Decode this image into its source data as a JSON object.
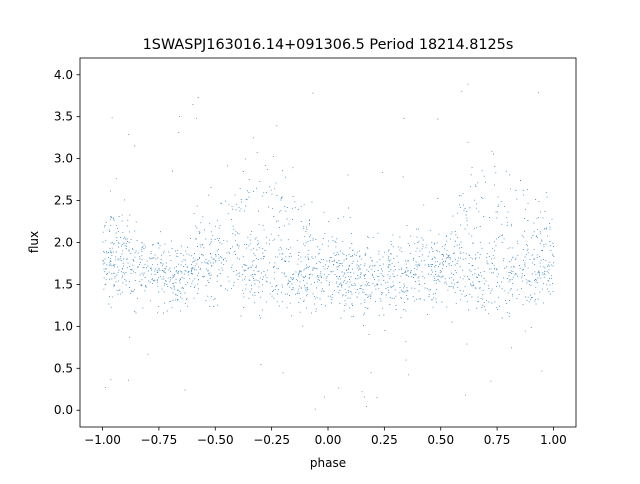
{
  "chart_data": {
    "type": "scatter",
    "title": "1SWASPJ163016.14+091306.5 Period 18214.8125s",
    "xlabel": "phase",
    "ylabel": "flux",
    "xlim": [
      -1.1,
      1.1
    ],
    "ylim": [
      -0.2,
      4.2
    ],
    "xticks": [
      -1.0,
      -0.75,
      -0.5,
      -0.25,
      0.0,
      0.25,
      0.5,
      0.75,
      1.0
    ],
    "xtick_labels": [
      "−1.00",
      "−0.75",
      "−0.50",
      "−0.25",
      "0.00",
      "0.25",
      "0.50",
      "0.75",
      "1.00"
    ],
    "yticks": [
      0.0,
      0.5,
      1.0,
      1.5,
      2.0,
      2.5,
      3.0,
      3.5,
      4.0
    ],
    "ytick_labels": [
      "0.0",
      "0.5",
      "1.0",
      "1.5",
      "2.0",
      "2.5",
      "3.0",
      "3.5",
      "4.0"
    ],
    "grid": false,
    "legend": "none",
    "series": [
      {
        "color": "#1f77b4",
        "x": [
          -1.0,
          -0.95,
          -0.9,
          -0.85,
          -0.8,
          -0.75,
          -0.7,
          -0.65,
          -0.6,
          -0.55,
          -0.5,
          -0.45,
          -0.4,
          -0.35,
          -0.3,
          -0.25,
          -0.2,
          -0.15,
          -0.1,
          -0.05,
          0.0,
          0.05,
          0.1,
          0.15,
          0.2,
          0.25,
          0.3,
          0.35,
          0.4,
          0.45,
          0.5,
          0.55,
          0.6,
          0.65,
          0.7,
          0.75,
          0.8,
          0.85,
          0.9,
          0.95,
          1.0
        ],
        "y_base": [
          1.75,
          1.75,
          1.72,
          1.68,
          1.65,
          1.62,
          1.6,
          1.62,
          1.66,
          1.7,
          1.73,
          1.7,
          1.68,
          1.65,
          1.62,
          1.6,
          1.58,
          1.57,
          1.56,
          1.56,
          1.56,
          1.57,
          1.57,
          1.57,
          1.58,
          1.6,
          1.63,
          1.66,
          1.68,
          1.7,
          1.73,
          1.7,
          1.67,
          1.64,
          1.6,
          1.58,
          1.57,
          1.58,
          1.6,
          1.65,
          1.7
        ],
        "y_upper": [
          2.15,
          2.15,
          2.1,
          2.0,
          1.9,
          1.85,
          1.85,
          1.9,
          2.0,
          2.15,
          2.3,
          2.55,
          2.75,
          2.85,
          2.85,
          2.7,
          2.55,
          2.4,
          2.25,
          2.1,
          2.05,
          2.0,
          1.95,
          1.85,
          1.8,
          1.75,
          1.72,
          1.7,
          1.72,
          1.8,
          1.95,
          2.25,
          2.55,
          2.75,
          2.85,
          2.75,
          2.6,
          2.5,
          2.4,
          2.3,
          2.25
        ]
      }
    ]
  }
}
